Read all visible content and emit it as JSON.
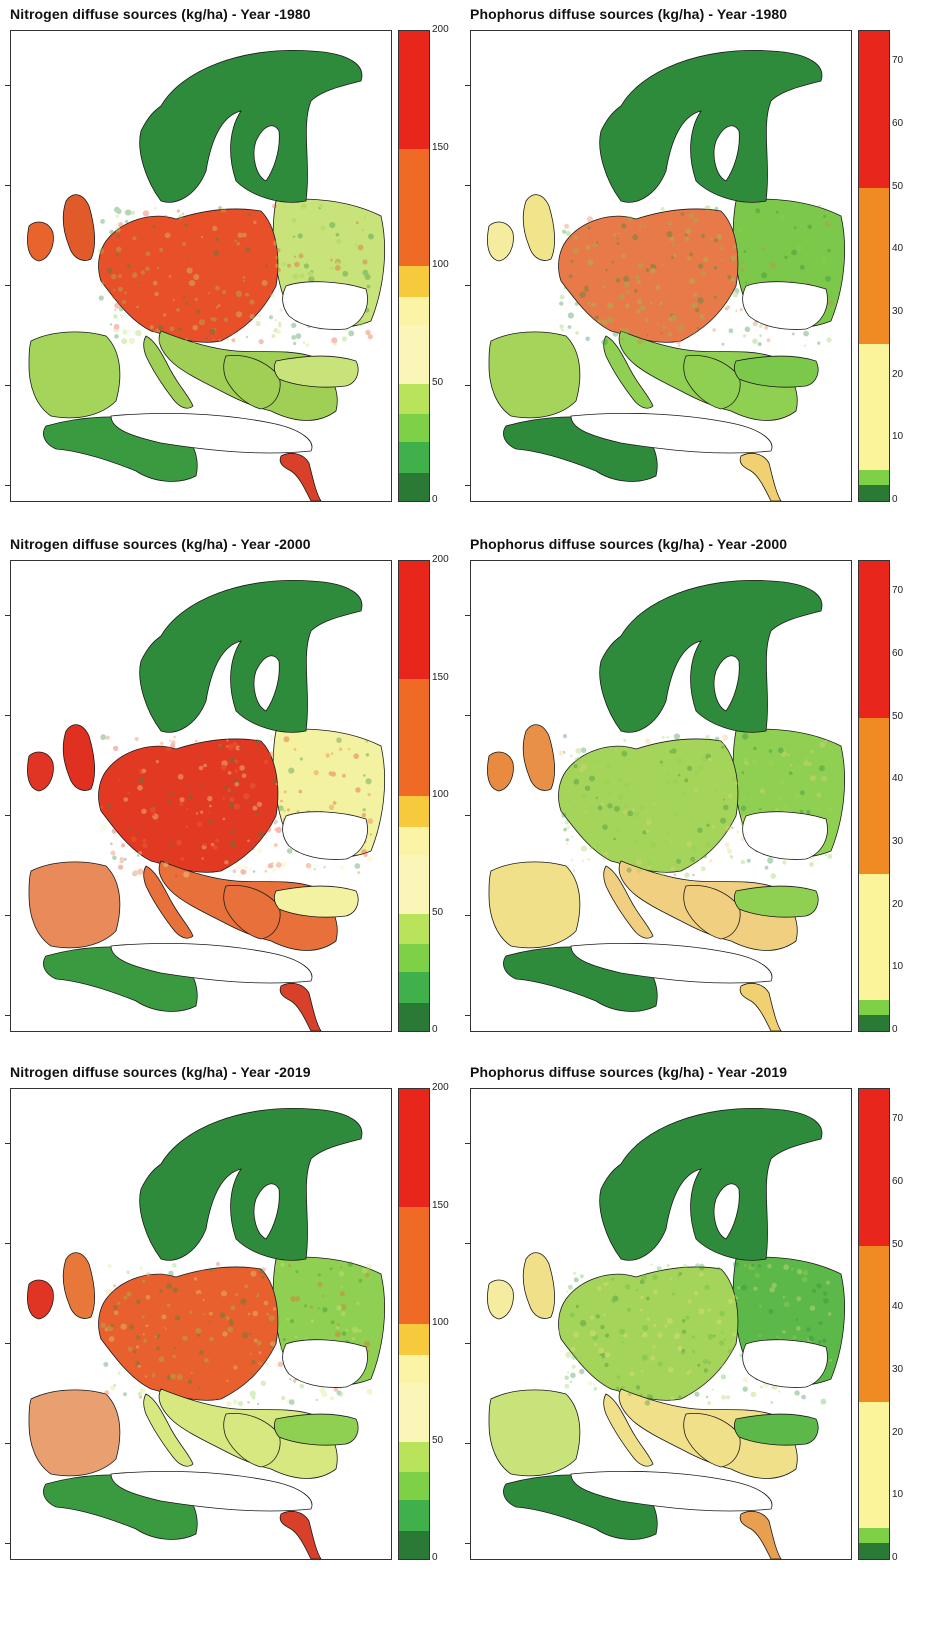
{
  "panels": [
    {
      "id": "n1980",
      "title": "Nitrogen diffuse sources (kg/ha) - Year -1980",
      "variable": "nitrogen",
      "year": "1980",
      "map_palette": {
        "north": "#2e8b3c",
        "central": "#e8502a",
        "east": "#c8e37a",
        "south": "#9fd055",
        "uk": "#e05a2a",
        "ireland": "#e8642c",
        "iberia": "#a5d45a",
        "africa": "#3a9a40",
        "nile": "#d8402a"
      }
    },
    {
      "id": "p1980",
      "title": "Phophorus diffuse sources (kg/ha) - Year -1980",
      "variable": "phosphorus",
      "year": "1980",
      "map_palette": {
        "north": "#2e8b3c",
        "central": "#e87a4a",
        "east": "#7cc84a",
        "south": "#8fd052",
        "uk": "#f0e58a",
        "ireland": "#f5eca0",
        "iberia": "#a5d45a",
        "africa": "#2e8b3c",
        "nile": "#f0d070"
      }
    },
    {
      "id": "n2000",
      "title": "Nitrogen diffuse sources (kg/ha) - Year -2000",
      "variable": "nitrogen",
      "year": "2000",
      "map_palette": {
        "north": "#2e8b3c",
        "central": "#e23a22",
        "east": "#f2f2a0",
        "south": "#e8703a",
        "uk": "#e03020",
        "ireland": "#e03525",
        "iberia": "#e88a5a",
        "africa": "#3a9a40",
        "nile": "#d8402a"
      }
    },
    {
      "id": "p2000",
      "title": "Phophorus diffuse sources (kg/ha) - Year -2000",
      "variable": "phosphorus",
      "year": "2000",
      "map_palette": {
        "north": "#2e8b3c",
        "central": "#a5d45a",
        "east": "#8fd052",
        "south": "#f0d080",
        "uk": "#e89048",
        "ireland": "#e88a40",
        "iberia": "#f0e08a",
        "africa": "#2e8b3c",
        "nile": "#f0d070"
      }
    },
    {
      "id": "n2019",
      "title": "Nitrogen diffuse sources (kg/ha) - Year -2019",
      "variable": "nitrogen",
      "year": "2019",
      "map_palette": {
        "north": "#2e8b3c",
        "central": "#e8602e",
        "east": "#8fd052",
        "south": "#d8e880",
        "uk": "#e8783a",
        "ireland": "#e03525",
        "iberia": "#e8a070",
        "africa": "#3a9a40",
        "nile": "#d8402a"
      }
    },
    {
      "id": "p2019",
      "title": "Phophorus diffuse sources (kg/ha) - Year -2019",
      "variable": "phosphorus",
      "year": "2019",
      "map_palette": {
        "north": "#2e8b3c",
        "central": "#a5d45a",
        "east": "#5cb848",
        "south": "#f0e08a",
        "uk": "#f0e08a",
        "ireland": "#f5eca0",
        "iberia": "#c8e37a",
        "africa": "#2e8b3c",
        "nile": "#e8a050"
      }
    }
  ],
  "legends": {
    "nitrogen": {
      "unit": "kg/ha",
      "max": 200,
      "ticks": [
        "200",
        "150",
        "100",
        "50",
        "0"
      ],
      "tick_values": [
        200,
        150,
        100,
        50,
        0
      ],
      "classes": [
        {
          "from": 175,
          "to": 200,
          "color": "#e8261c"
        },
        {
          "from": 150,
          "to": 175,
          "color": "#e8261c"
        },
        {
          "from": 125,
          "to": 150,
          "color": "#ef6a24"
        },
        {
          "from": 100,
          "to": 125,
          "color": "#ef6a24"
        },
        {
          "from": 87,
          "to": 100,
          "color": "#f7c93c"
        },
        {
          "from": 75,
          "to": 87,
          "color": "#fbf3a6"
        },
        {
          "from": 50,
          "to": 75,
          "color": "#fbf6b8"
        },
        {
          "from": 37,
          "to": 50,
          "color": "#b9e35a"
        },
        {
          "from": 25,
          "to": 37,
          "color": "#7ed047"
        },
        {
          "from": 12,
          "to": 25,
          "color": "#3fb04a"
        },
        {
          "from": 0,
          "to": 12,
          "color": "#2a7a36"
        }
      ]
    },
    "phosphorus": {
      "unit": "kg/ha",
      "max": 75,
      "ticks": [
        "70",
        "60",
        "50",
        "40",
        "30",
        "20",
        "10",
        "0"
      ],
      "tick_values": [
        70,
        60,
        50,
        40,
        30,
        20,
        10,
        0
      ],
      "classes": [
        {
          "from": 50,
          "to": 75,
          "color": "#e8261c"
        },
        {
          "from": 25,
          "to": 50,
          "color": "#f08a22"
        },
        {
          "from": 5,
          "to": 25,
          "color": "#fbf49a"
        },
        {
          "from": 2.5,
          "to": 5,
          "color": "#7ed047"
        },
        {
          "from": 0,
          "to": 2.5,
          "color": "#2a7a36"
        }
      ]
    }
  }
}
